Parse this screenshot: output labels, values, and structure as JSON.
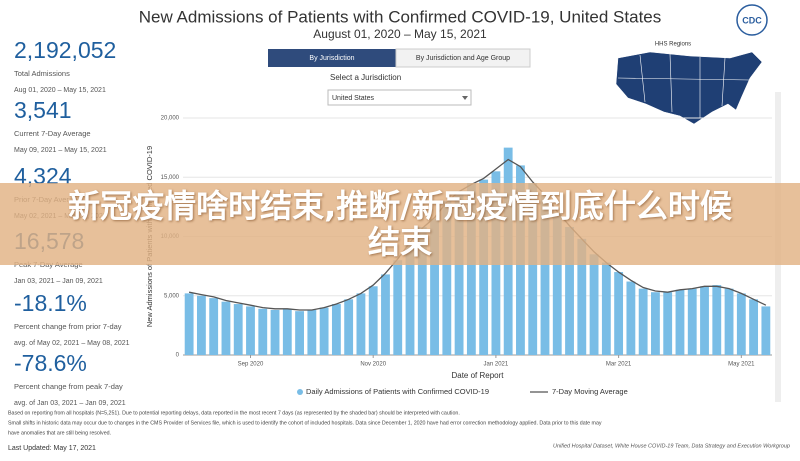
{
  "header": {
    "title": "New Admissions of Patients with Confirmed COVID-19, United States",
    "subtitle": "August 01, 2020 – May 15, 2021",
    "logo": "CDC"
  },
  "tabs": [
    "By Jurisdiction",
    "By Jurisdiction and Age Group"
  ],
  "selector": {
    "label": "Select a Jurisdiction",
    "value": "United States"
  },
  "map": {
    "title": "HHS Regions"
  },
  "stats": [
    {
      "value": "2,192,052",
      "label": "Total Admissions",
      "range": "Aug 01, 2020 – May 15, 2021"
    },
    {
      "value": "3,541",
      "label": "Current 7-Day Average",
      "range": "May 09, 2021 – May 15, 2021"
    },
    {
      "value": "4,324",
      "label": "Prior 7-Day Average",
      "range": "May 02, 2021 – May 08, 2021"
    },
    {
      "value": "16,578",
      "label": "Peak 7-Day Average",
      "range": "Jan 03, 2021 – Jan 09, 2021"
    },
    {
      "value": "-18.1%",
      "label": "Percent change from prior 7-day",
      "range": "avg. of May 02, 2021 – May 08, 2021"
    },
    {
      "value": "-78.6%",
      "label": "Percent change from peak 7-day",
      "range": "avg. of Jan 03, 2021 – Jan 09, 2021"
    }
  ],
  "chart_data": {
    "type": "bar",
    "ylabel": "New Admissions of Patients with Confirmed COVID-19",
    "xlabel": "Date of Report",
    "categories": [
      null,
      null,
      null,
      null,
      null,
      "Sep 2020",
      null,
      null,
      null,
      null,
      null,
      null,
      null,
      null,
      null,
      "Nov 2020",
      null,
      null,
      null,
      null,
      null,
      null,
      null,
      null,
      null,
      "Jan 2021",
      null,
      null,
      null,
      null,
      null,
      null,
      null,
      null,
      null,
      "Mar 2021",
      null,
      null,
      null,
      null,
      null,
      null,
      null,
      null,
      null,
      "May 2021",
      null,
      null
    ],
    "series": [
      {
        "name": "Daily Admissions of Patients with Confirmed COVID-19",
        "color": "#79bde6",
        "values": [
          5200,
          5000,
          4800,
          4500,
          4300,
          4100,
          3900,
          3800,
          3900,
          3700,
          3800,
          4000,
          4300,
          4700,
          5200,
          5800,
          6800,
          8000,
          9500,
          10800,
          11500,
          13000,
          13800,
          14500,
          14800,
          15500,
          17500,
          16000,
          14500,
          13500,
          12000,
          10800,
          9800,
          8500,
          7800,
          7000,
          6200,
          5600,
          5300,
          5300,
          5500,
          5600,
          5800,
          5900,
          5600,
          5200,
          4700,
          4100
        ]
      },
      {
        "name": "7-Day Moving Average",
        "color": "#555555",
        "type": "line",
        "values": [
          5300,
          5100,
          4900,
          4600,
          4400,
          4200,
          4000,
          3900,
          3900,
          3800,
          3800,
          4000,
          4300,
          4700,
          5200,
          5900,
          6900,
          8100,
          9500,
          10700,
          11600,
          12900,
          13800,
          14400,
          14900,
          15700,
          16500,
          15900,
          14600,
          13500,
          12100,
          10900,
          9800,
          8700,
          7800,
          7000,
          6300,
          5700,
          5400,
          5300,
          5500,
          5600,
          5800,
          5800,
          5600,
          5200,
          4700,
          4200
        ]
      }
    ],
    "ylim": [
      0,
      20000
    ],
    "yticks": [
      0,
      {
        "value": 5000,
        "label": "5,000"
      },
      {
        "value": 10000,
        "label": "10,000"
      },
      {
        "value": 15000,
        "label": "15,000"
      },
      {
        "value": 20000,
        "label": "20,000"
      }
    ],
    "grid": true
  },
  "footnotes": [
    "Based on reporting from all hospitals (N=5,251). Due to potential reporting delays, data reported in the most recent 7 days (as represented by the shaded bar) should be interpreted with caution.",
    "Small shifts in historic data may occur due to changes in the CMS Provider of Services file, which is used to identify the cohort of included hospitals. Data since December 1, 2020 have had error correction methodology applied. Data prior to this date may",
    "have anomalies that are still being resolved."
  ],
  "updated": "Last Updated: May 17, 2021",
  "source": "Unified Hospital Dataset, White House COVID-19 Team, Data Strategy and Execution Workgroup",
  "banner": "新冠疫情啥时结束,推断/新冠疫情到底什么时候结束"
}
